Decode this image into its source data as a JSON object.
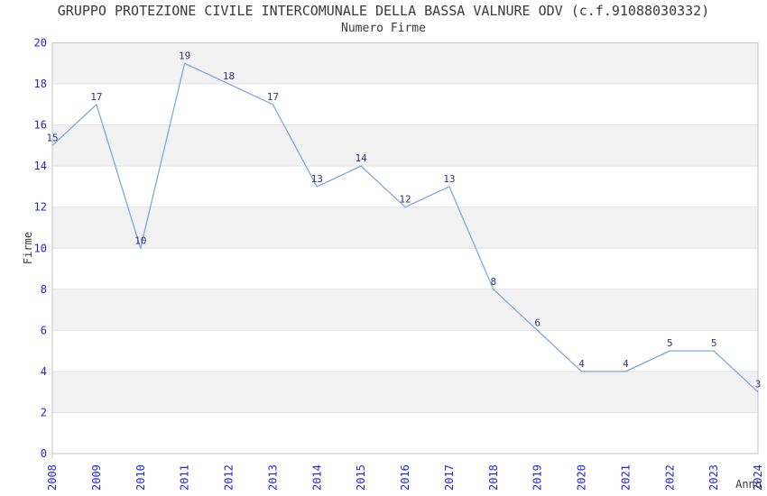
{
  "chart_data": {
    "type": "line",
    "title": "GRUPPO PROTEZIONE CIVILE INTERCOMUNALE DELLA BASSA VALNURE ODV (c.f.91088030332)",
    "subtitle": "Numero Firme",
    "xlabel": "Anno",
    "ylabel": "Firme",
    "categories": [
      "2008",
      "2009",
      "2010",
      "2011",
      "2012",
      "2013",
      "2014",
      "2015",
      "2016",
      "2017",
      "2018",
      "2019",
      "2020",
      "2021",
      "2022",
      "2023",
      "2024"
    ],
    "values": [
      15,
      17,
      10,
      19,
      18,
      17,
      13,
      14,
      12,
      13,
      8,
      6,
      4,
      4,
      5,
      5,
      3
    ],
    "ylim": [
      0,
      20
    ],
    "yticks": [
      0,
      2,
      4,
      6,
      8,
      10,
      12,
      14,
      16,
      18,
      20
    ],
    "grid": "horizontal",
    "band_fill": "alternating",
    "legend": "none",
    "data_labels": true,
    "colors": {
      "line": "#7FA8DC",
      "band": "#f2f2f2",
      "gridline": "#e0e0e0",
      "plot_border": "#c6c6c6",
      "tick_label": "#2323dd",
      "data_label": "#333377",
      "text": "#3a3a3a",
      "background": "#ffffff"
    }
  }
}
